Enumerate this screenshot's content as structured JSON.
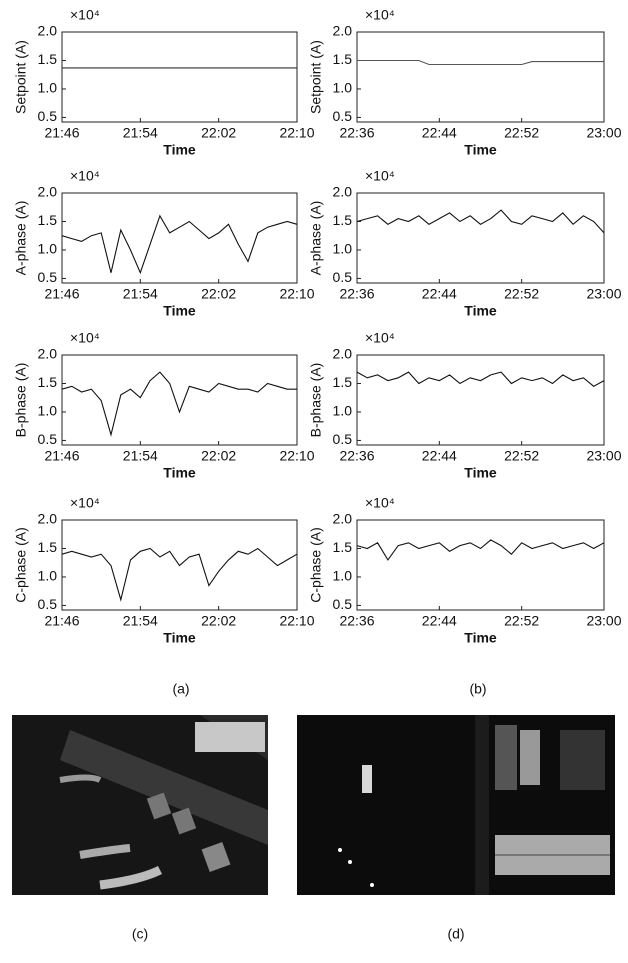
{
  "chart_data": [
    {
      "type": "line",
      "ylabel": "Setpoint (A)",
      "xlabel": "Time",
      "multiplier": "×10⁴",
      "color": "#333333",
      "x": [
        "21:46",
        "21:47",
        "21:48",
        "21:49",
        "21:50",
        "21:51",
        "21:52",
        "21:53",
        "21:54",
        "21:55",
        "21:56",
        "21:57",
        "21:58",
        "21:59",
        "22:00",
        "22:01",
        "22:02",
        "22:03",
        "22:04",
        "22:05",
        "22:06",
        "22:07",
        "22:08",
        "22:09",
        "22:10"
      ],
      "values": [
        1.37,
        1.37,
        1.37,
        1.37,
        1.37,
        1.37,
        1.37,
        1.37,
        1.37,
        1.37,
        1.37,
        1.37,
        1.37,
        1.37,
        1.37,
        1.37,
        1.37,
        1.37,
        1.37,
        1.37,
        1.37,
        1.37,
        1.37,
        1.37,
        1.37
      ],
      "xlim": [
        "21:46",
        "22:10"
      ],
      "xticks": [
        "21:46",
        "21:54",
        "22:02",
        "22:10"
      ],
      "ylim": [
        0.42,
        2.0
      ],
      "yticks": [
        0.5,
        {
          "value": 1.0,
          "label": "1.0"
        },
        1.5,
        {
          "value": 2.0,
          "label": "2.0"
        }
      ]
    },
    {
      "type": "line",
      "ylabel": "Setpoint (A)",
      "xlabel": "Time",
      "multiplier": "×10⁴",
      "color": "#555555",
      "x": [
        "22:36",
        "22:37",
        "22:38",
        "22:39",
        "22:40",
        "22:41",
        "22:42",
        "22:43",
        "22:44",
        "22:45",
        "22:46",
        "22:47",
        "22:48",
        "22:49",
        "22:50",
        "22:51",
        "22:52",
        "22:53",
        "22:54",
        "22:55",
        "22:56",
        "22:57",
        "22:58",
        "22:59",
        "23:00"
      ],
      "values": [
        1.5,
        1.5,
        1.5,
        1.5,
        1.5,
        1.5,
        1.5,
        1.43,
        1.43,
        1.43,
        1.43,
        1.43,
        1.43,
        1.43,
        1.43,
        1.43,
        1.43,
        1.48,
        1.48,
        1.48,
        1.48,
        1.48,
        1.48,
        1.48,
        1.48
      ],
      "xlim": [
        "22:36",
        "23:00"
      ],
      "xticks": [
        "22:36",
        "22:44",
        "22:52",
        "23:00"
      ],
      "ylim": [
        0.42,
        2.0
      ],
      "yticks": [
        0.5,
        {
          "value": 1.0,
          "label": "1.0"
        },
        1.5,
        {
          "value": 2.0,
          "label": "2.0"
        }
      ]
    },
    {
      "type": "line",
      "ylabel": "A-phase (A)",
      "xlabel": "Time",
      "multiplier": "×10⁴",
      "color": "#111111",
      "x": [
        "21:46",
        "21:47",
        "21:48",
        "21:49",
        "21:50",
        "21:51",
        "21:52",
        "21:53",
        "21:54",
        "21:55",
        "21:56",
        "21:57",
        "21:58",
        "21:59",
        "22:00",
        "22:01",
        "22:02",
        "22:03",
        "22:04",
        "22:05",
        "22:06",
        "22:07",
        "22:08",
        "22:09",
        "22:10"
      ],
      "values": [
        1.25,
        1.2,
        1.15,
        1.25,
        1.3,
        0.6,
        1.35,
        1.0,
        0.6,
        1.1,
        1.6,
        1.3,
        1.4,
        1.5,
        1.35,
        1.2,
        1.3,
        1.45,
        1.1,
        0.8,
        1.3,
        1.4,
        1.45,
        1.5,
        1.45
      ],
      "xlim": [
        "21:46",
        "22:10"
      ],
      "xticks": [
        "21:46",
        "21:54",
        "22:02",
        "22:10"
      ],
      "ylim": [
        0.42,
        2.0
      ],
      "yticks": [
        0.5,
        {
          "value": 1.0,
          "label": "1.0"
        },
        1.5,
        {
          "value": 2.0,
          "label": "2.0"
        }
      ]
    },
    {
      "type": "line",
      "ylabel": "A-phase (A)",
      "xlabel": "Time",
      "multiplier": "×10⁴",
      "color": "#111111",
      "x": [
        "22:36",
        "22:37",
        "22:38",
        "22:39",
        "22:40",
        "22:41",
        "22:42",
        "22:43",
        "22:44",
        "22:45",
        "22:46",
        "22:47",
        "22:48",
        "22:49",
        "22:50",
        "22:51",
        "22:52",
        "22:53",
        "22:54",
        "22:55",
        "22:56",
        "22:57",
        "22:58",
        "22:59",
        "23:00"
      ],
      "values": [
        1.5,
        1.55,
        1.6,
        1.45,
        1.55,
        1.5,
        1.6,
        1.45,
        1.55,
        1.65,
        1.5,
        1.6,
        1.45,
        1.55,
        1.7,
        1.5,
        1.45,
        1.6,
        1.55,
        1.5,
        1.65,
        1.45,
        1.6,
        1.5,
        1.3
      ],
      "xlim": [
        "22:36",
        "23:00"
      ],
      "xticks": [
        "22:36",
        "22:44",
        "22:52",
        "23:00"
      ],
      "ylim": [
        0.42,
        2.0
      ],
      "yticks": [
        0.5,
        {
          "value": 1.0,
          "label": "1.0"
        },
        1.5,
        {
          "value": 2.0,
          "label": "2.0"
        }
      ]
    },
    {
      "type": "line",
      "ylabel": "B-phase (A)",
      "xlabel": "Time",
      "multiplier": "×10⁴",
      "color": "#111111",
      "x": [
        "21:46",
        "21:47",
        "21:48",
        "21:49",
        "21:50",
        "21:51",
        "21:52",
        "21:53",
        "21:54",
        "21:55",
        "21:56",
        "21:57",
        "21:58",
        "21:59",
        "22:00",
        "22:01",
        "22:02",
        "22:03",
        "22:04",
        "22:05",
        "22:06",
        "22:07",
        "22:08",
        "22:09",
        "22:10"
      ],
      "values": [
        1.4,
        1.45,
        1.35,
        1.4,
        1.2,
        0.6,
        1.3,
        1.4,
        1.25,
        1.55,
        1.7,
        1.5,
        1.0,
        1.45,
        1.4,
        1.35,
        1.5,
        1.45,
        1.4,
        1.4,
        1.35,
        1.5,
        1.45,
        1.4,
        1.4
      ],
      "xlim": [
        "21:46",
        "22:10"
      ],
      "xticks": [
        "21:46",
        "21:54",
        "22:02",
        "22:10"
      ],
      "ylim": [
        0.42,
        2.0
      ],
      "yticks": [
        0.5,
        {
          "value": 1.0,
          "label": "1.0"
        },
        1.5,
        {
          "value": 2.0,
          "label": "2.0"
        }
      ]
    },
    {
      "type": "line",
      "ylabel": "B-phase (A)",
      "xlabel": "Time",
      "multiplier": "×10⁴",
      "color": "#111111",
      "x": [
        "22:36",
        "22:37",
        "22:38",
        "22:39",
        "22:40",
        "22:41",
        "22:42",
        "22:43",
        "22:44",
        "22:45",
        "22:46",
        "22:47",
        "22:48",
        "22:49",
        "22:50",
        "22:51",
        "22:52",
        "22:53",
        "22:54",
        "22:55",
        "22:56",
        "22:57",
        "22:58",
        "22:59",
        "23:00"
      ],
      "values": [
        1.7,
        1.6,
        1.65,
        1.55,
        1.6,
        1.7,
        1.5,
        1.6,
        1.55,
        1.65,
        1.5,
        1.6,
        1.55,
        1.65,
        1.7,
        1.5,
        1.6,
        1.55,
        1.6,
        1.5,
        1.65,
        1.55,
        1.6,
        1.45,
        1.55
      ],
      "xlim": [
        "22:36",
        "23:00"
      ],
      "xticks": [
        "22:36",
        "22:44",
        "22:52",
        "23:00"
      ],
      "ylim": [
        0.42,
        2.0
      ],
      "yticks": [
        0.5,
        {
          "value": 1.0,
          "label": "1.0"
        },
        1.5,
        {
          "value": 2.0,
          "label": "2.0"
        }
      ]
    },
    {
      "type": "line",
      "ylabel": "C-phase (A)",
      "xlabel": "Time",
      "multiplier": "×10⁴",
      "color": "#111111",
      "x": [
        "21:46",
        "21:47",
        "21:48",
        "21:49",
        "21:50",
        "21:51",
        "21:52",
        "21:53",
        "21:54",
        "21:55",
        "21:56",
        "21:57",
        "21:58",
        "21:59",
        "22:00",
        "22:01",
        "22:02",
        "22:03",
        "22:04",
        "22:05",
        "22:06",
        "22:07",
        "22:08",
        "22:09",
        "22:10"
      ],
      "values": [
        1.4,
        1.45,
        1.4,
        1.35,
        1.4,
        1.2,
        0.6,
        1.3,
        1.45,
        1.5,
        1.35,
        1.45,
        1.2,
        1.35,
        1.4,
        0.85,
        1.1,
        1.3,
        1.45,
        1.4,
        1.5,
        1.35,
        1.2,
        1.3,
        1.4
      ],
      "xlim": [
        "21:46",
        "22:10"
      ],
      "xticks": [
        "21:46",
        "21:54",
        "22:02",
        "22:10"
      ],
      "ylim": [
        0.42,
        2.0
      ],
      "yticks": [
        0.5,
        {
          "value": 1.0,
          "label": "1.0"
        },
        1.5,
        {
          "value": 2.0,
          "label": "2.0"
        }
      ]
    },
    {
      "type": "line",
      "ylabel": "C-phase (A)",
      "xlabel": "Time",
      "multiplier": "×10⁴",
      "color": "#111111",
      "x": [
        "22:36",
        "22:37",
        "22:38",
        "22:39",
        "22:40",
        "22:41",
        "22:42",
        "22:43",
        "22:44",
        "22:45",
        "22:46",
        "22:47",
        "22:48",
        "22:49",
        "22:50",
        "22:51",
        "22:52",
        "22:53",
        "22:54",
        "22:55",
        "22:56",
        "22:57",
        "22:58",
        "22:59",
        "23:00"
      ],
      "values": [
        1.55,
        1.5,
        1.6,
        1.3,
        1.55,
        1.6,
        1.5,
        1.55,
        1.6,
        1.45,
        1.55,
        1.6,
        1.5,
        1.65,
        1.55,
        1.4,
        1.6,
        1.5,
        1.55,
        1.6,
        1.5,
        1.55,
        1.6,
        1.5,
        1.6
      ],
      "xlim": [
        "22:36",
        "23:00"
      ],
      "xticks": [
        "22:36",
        "22:44",
        "22:52",
        "23:00"
      ],
      "ylim": [
        0.42,
        2.0
      ],
      "yticks": [
        0.5,
        {
          "value": 1.0,
          "label": "1.0"
        },
        1.5,
        {
          "value": 2.0,
          "label": "2.0"
        }
      ]
    }
  ],
  "panels": [
    "(a)",
    "(b)",
    "(c)",
    "(d)"
  ]
}
